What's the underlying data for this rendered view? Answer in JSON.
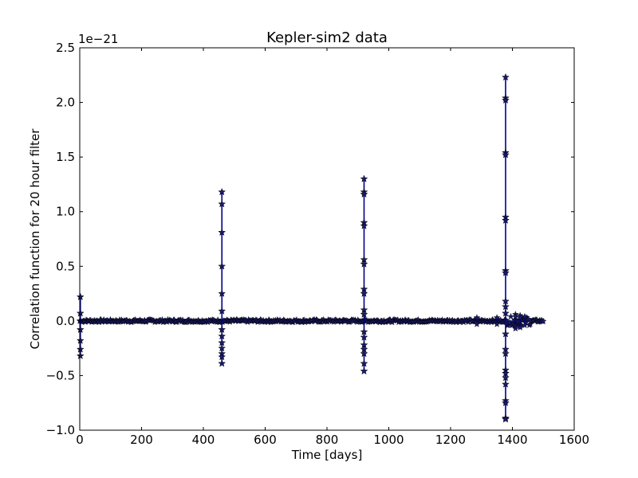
{
  "chart_data": {
    "type": "line",
    "title": "Kepler-sim2 data",
    "xlabel": "Time [days]",
    "ylabel": "Correlation function for 20 hour filter",
    "y_offset_text": "1e−21",
    "xlim": [
      0,
      1600
    ],
    "ylim": [
      -1.0,
      2.5
    ],
    "xticks": [
      0,
      200,
      400,
      600,
      800,
      1000,
      1200,
      1400,
      1600
    ],
    "xtick_labels": [
      "0",
      "200",
      "400",
      "600",
      "800",
      "1000",
      "1200",
      "1400",
      "1600"
    ],
    "yticks": [
      -1.0,
      -0.5,
      0.0,
      0.5,
      1.0,
      1.5,
      2.0,
      2.5
    ],
    "ytick_labels": [
      "−1.0",
      "−0.5",
      "0.0",
      "0.5",
      "1.0",
      "1.5",
      "2.0",
      "2.5"
    ],
    "grid": false,
    "marker": "star",
    "line_color": "#00008b",
    "marker_color": "#1a1a6e",
    "x_data_range": [
      0,
      1500
    ],
    "baseline": 0.0,
    "spikes": [
      {
        "x": 2,
        "values": [
          0.22,
          0.07,
          -0.08,
          -0.18,
          -0.26,
          -0.32
        ]
      },
      {
        "x": 460,
        "values": [
          1.18,
          1.07,
          0.81,
          0.5,
          0.25,
          0.09,
          -0.08,
          -0.14,
          -0.2,
          -0.25,
          -0.3,
          -0.33,
          -0.39
        ]
      },
      {
        "x": 920,
        "values": [
          1.3,
          1.18,
          1.16,
          0.9,
          0.87,
          0.56,
          0.52,
          0.29,
          0.25,
          0.1,
          0.06,
          -0.1,
          -0.15,
          -0.22,
          -0.26,
          -0.3,
          -0.39,
          -0.46
        ]
      },
      {
        "x": 1378,
        "values": [
          2.23,
          2.04,
          2.02,
          1.54,
          1.52,
          0.95,
          0.92,
          0.46,
          0.44,
          0.18,
          0.13,
          0.07,
          -0.12,
          -0.26,
          -0.3,
          -0.45,
          -0.48,
          -0.52,
          -0.58,
          -0.73,
          -0.75,
          -0.89,
          -0.9
        ]
      }
    ],
    "noise_bursts": [
      {
        "x": 1410,
        "values": [
          0.06,
          0.04,
          -0.05,
          -0.07
        ]
      },
      {
        "x": 1425,
        "values": [
          0.05,
          0.03,
          -0.05,
          -0.06
        ]
      },
      {
        "x": 1440,
        "values": [
          0.04,
          -0.04
        ]
      },
      {
        "x": 1285,
        "values": [
          0.03,
          -0.03
        ]
      },
      {
        "x": 1350,
        "values": [
          0.03,
          -0.03
        ]
      }
    ]
  }
}
